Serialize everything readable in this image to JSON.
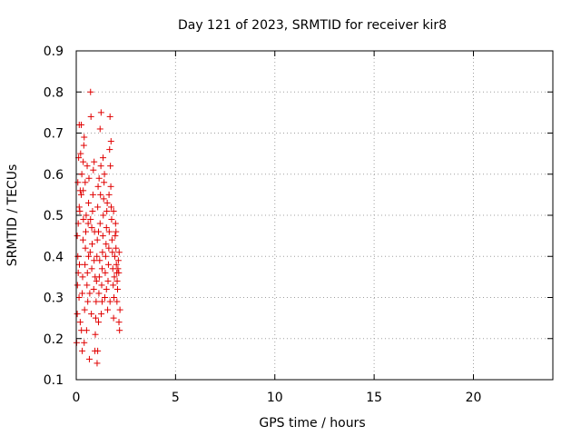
{
  "chart_data": {
    "type": "scatter",
    "title": "Day 121 of 2023, SRMTID for receiver kir8",
    "xlabel": "GPS time / hours",
    "ylabel": "SRMTID / TECUs",
    "xlim": [
      0,
      24
    ],
    "ylim": [
      0.1,
      0.9
    ],
    "xticks": [
      0,
      5,
      10,
      15,
      20
    ],
    "xtick_labels": [
      "0",
      "5",
      "10",
      "15",
      "20"
    ],
    "yticks": [
      0.1,
      0.2,
      0.3,
      0.4,
      0.5,
      0.6,
      0.7,
      0.8,
      0.9
    ],
    "ytick_labels": [
      "0.1",
      "0.2",
      "0.3",
      "0.4",
      "0.5",
      "0.6",
      "0.7",
      "0.8",
      "0.9"
    ],
    "grid": true,
    "marker": "+",
    "color": "#e00000",
    "series": [
      {
        "name": "kir8",
        "points": [
          [
            0.02,
            0.19
          ],
          [
            0.05,
            0.26
          ],
          [
            0.06,
            0.33
          ],
          [
            0.08,
            0.4
          ],
          [
            0.05,
            0.45
          ],
          [
            0.1,
            0.48
          ],
          [
            0.08,
            0.58
          ],
          [
            0.12,
            0.64
          ],
          [
            0.15,
            0.72
          ],
          [
            0.14,
            0.3
          ],
          [
            0.16,
            0.38
          ],
          [
            0.18,
            0.51
          ],
          [
            0.2,
            0.56
          ],
          [
            0.22,
            0.65
          ],
          [
            0.25,
            0.72
          ],
          [
            0.28,
            0.6
          ],
          [
            0.2,
            0.24
          ],
          [
            0.26,
            0.22
          ],
          [
            0.3,
            0.31
          ],
          [
            0.32,
            0.35
          ],
          [
            0.34,
            0.44
          ],
          [
            0.36,
            0.49
          ],
          [
            0.3,
            0.17
          ],
          [
            0.35,
            0.56
          ],
          [
            0.38,
            0.67
          ],
          [
            0.4,
            0.69
          ],
          [
            0.42,
            0.27
          ],
          [
            0.44,
            0.38
          ],
          [
            0.46,
            0.42
          ],
          [
            0.48,
            0.46
          ],
          [
            0.5,
            0.5
          ],
          [
            0.4,
            0.19
          ],
          [
            0.52,
            0.22
          ],
          [
            0.54,
            0.33
          ],
          [
            0.56,
            0.36
          ],
          [
            0.58,
            0.29
          ],
          [
            0.6,
            0.48
          ],
          [
            0.62,
            0.53
          ],
          [
            0.64,
            0.59
          ],
          [
            0.66,
            0.15
          ],
          [
            0.68,
            0.31
          ],
          [
            0.7,
            0.41
          ],
          [
            0.72,
            0.49
          ],
          [
            0.72,
            0.8
          ],
          [
            0.74,
            0.74
          ],
          [
            0.76,
            0.26
          ],
          [
            0.78,
            0.37
          ],
          [
            0.8,
            0.43
          ],
          [
            0.82,
            0.51
          ],
          [
            0.84,
            0.55
          ],
          [
            0.86,
            0.61
          ],
          [
            0.88,
            0.32
          ],
          [
            0.9,
            0.39
          ],
          [
            0.92,
            0.46
          ],
          [
            0.94,
            0.17
          ],
          [
            0.96,
            0.21
          ],
          [
            0.98,
            0.25
          ],
          [
            1.0,
            0.29
          ],
          [
            1.02,
            0.34
          ],
          [
            1.04,
            0.4
          ],
          [
            1.06,
            0.44
          ],
          [
            1.08,
            0.52
          ],
          [
            1.1,
            0.57
          ],
          [
            1.05,
            0.14
          ],
          [
            1.08,
            0.17
          ],
          [
            1.12,
            0.24
          ],
          [
            1.14,
            0.31
          ],
          [
            1.16,
            0.35
          ],
          [
            1.18,
            0.39
          ],
          [
            1.2,
            0.48
          ],
          [
            1.22,
            0.55
          ],
          [
            1.24,
            0.62
          ],
          [
            1.2,
            0.71
          ],
          [
            1.25,
            0.75
          ],
          [
            1.26,
            0.26
          ],
          [
            1.28,
            0.33
          ],
          [
            1.3,
            0.37
          ],
          [
            1.32,
            0.41
          ],
          [
            1.34,
            0.45
          ],
          [
            1.36,
            0.5
          ],
          [
            1.38,
            0.54
          ],
          [
            1.4,
            0.58
          ],
          [
            1.42,
            0.6
          ],
          [
            1.44,
            0.3
          ],
          [
            1.46,
            0.36
          ],
          [
            1.48,
            0.4
          ],
          [
            1.5,
            0.43
          ],
          [
            1.52,
            0.47
          ],
          [
            1.54,
            0.51
          ],
          [
            1.56,
            0.53
          ],
          [
            1.58,
            0.27
          ],
          [
            1.6,
            0.34
          ],
          [
            1.62,
            0.38
          ],
          [
            1.64,
            0.42
          ],
          [
            1.66,
            0.46
          ],
          [
            1.68,
            0.66
          ],
          [
            1.7,
            0.74
          ],
          [
            1.72,
            0.62
          ],
          [
            1.74,
            0.57
          ],
          [
            1.76,
            0.52
          ],
          [
            1.78,
            0.49
          ],
          [
            1.8,
            0.44
          ],
          [
            1.82,
            0.41
          ],
          [
            1.84,
            0.37
          ],
          [
            1.86,
            0.33
          ],
          [
            1.88,
            0.25
          ],
          [
            1.9,
            0.3
          ],
          [
            1.92,
            0.35
          ],
          [
            1.94,
            0.4
          ],
          [
            1.96,
            0.45
          ],
          [
            1.98,
            0.48
          ],
          [
            2.0,
            0.42
          ],
          [
            2.02,
            0.38
          ],
          [
            2.04,
            0.36
          ],
          [
            2.06,
            0.34
          ],
          [
            2.08,
            0.32
          ],
          [
            2.1,
            0.37
          ],
          [
            2.12,
            0.39
          ],
          [
            2.14,
            0.36
          ],
          [
            2.16,
            0.41
          ],
          [
            2.18,
            0.22
          ],
          [
            2.2,
            0.27
          ],
          [
            2.15,
            0.24
          ],
          [
            2.05,
            0.29
          ],
          [
            1.75,
            0.68
          ],
          [
            1.65,
            0.55
          ],
          [
            0.55,
            0.62
          ],
          [
            0.45,
            0.58
          ],
          [
            0.35,
            0.63
          ],
          [
            0.25,
            0.55
          ],
          [
            0.15,
            0.52
          ],
          [
            0.1,
            0.36
          ],
          [
            0.9,
            0.63
          ],
          [
            1.15,
            0.59
          ],
          [
            1.35,
            0.64
          ],
          [
            0.62,
            0.4
          ],
          [
            0.78,
            0.47
          ],
          [
            0.95,
            0.35
          ],
          [
            1.12,
            0.46
          ],
          [
            1.3,
            0.29
          ],
          [
            1.52,
            0.32
          ],
          [
            1.7,
            0.29
          ],
          [
            1.88,
            0.51
          ],
          [
            2.0,
            0.46
          ]
        ]
      }
    ]
  }
}
